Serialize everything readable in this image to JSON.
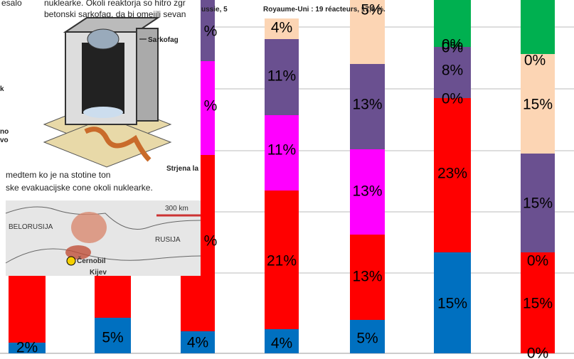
{
  "bars": [
    {
      "labels": [
        "2%"
      ]
    },
    {
      "labels": [
        "5%"
      ]
    },
    {
      "labels": [
        "%",
        "%",
        "%",
        "4%"
      ]
    },
    {
      "labels": [
        "4%",
        "11%",
        "11%",
        "21%",
        "4%"
      ]
    },
    {
      "labels": [
        "5%",
        "13%",
        "13%",
        "13%",
        "5%"
      ]
    },
    {
      "labels": [
        "0%",
        "0%",
        "8%",
        "0%",
        "23%",
        "15%"
      ]
    },
    {
      "labels": [
        "0%",
        "15%",
        "15%",
        "0%",
        "15%",
        "0%"
      ]
    }
  ],
  "article": {
    "top_left": [
      "esalo",
      "k",
      "no",
      "vo"
    ],
    "top_lines": [
      "nuklearke. Okoli reaktorja so hitro zgr",
      "betonski sarkofag, da bi omejili sevan"
    ],
    "side_note": "ussie, 5",
    "uk_note": "Royaume-Uni : 19 réacteurs, 17,9 %.",
    "sarkofag": "Sarkofag",
    "lava": "Strjena la",
    "body_lines": [
      "medtem ko je na stotine ton",
      "ske evakuacijske cone okoli nuklearke."
    ],
    "scale": "300 km",
    "belarus": "BELORUSIJA",
    "russia": "RUSIJA",
    "chernobyl": "Černobil",
    "kiev": "Kijev"
  }
}
